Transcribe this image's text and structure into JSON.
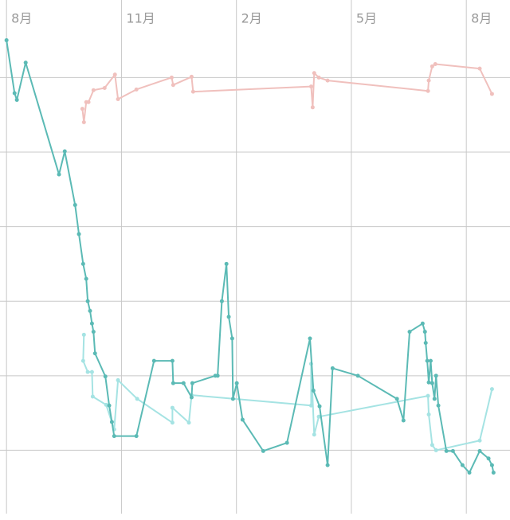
{
  "chart_data": {
    "type": "line",
    "xlim": [
      -0.17,
      13.14
    ],
    "xticks": [
      {
        "value": 0,
        "label": "8月"
      },
      {
        "value": 3,
        "label": "11月"
      },
      {
        "value": 6,
        "label": "2月"
      },
      {
        "value": 9,
        "label": "5月"
      },
      {
        "value": 12,
        "label": "8月"
      }
    ],
    "ylim": [
      -0.85,
      6.04
    ],
    "yticks": [
      0,
      1,
      2,
      3,
      4,
      5
    ],
    "grid": true,
    "series": [
      {
        "color": "#f0c0bd",
        "x": [
          1.98,
          2.02,
          2.08,
          2.14,
          2.27,
          2.56,
          2.83,
          2.91,
          3.39,
          4.31,
          4.35,
          4.83,
          4.87,
          7.95,
          7.99,
          8.03,
          8.15,
          8.38,
          11.0,
          11.02,
          11.11,
          11.19,
          12.35,
          12.67
        ],
        "values": [
          4.58,
          4.4,
          4.67,
          4.67,
          4.83,
          4.86,
          5.04,
          4.71,
          4.84,
          5.0,
          4.9,
          5.01,
          4.81,
          4.88,
          4.6,
          5.06,
          5.0,
          4.96,
          4.82,
          4.96,
          5.15,
          5.18,
          5.12,
          4.78
        ]
      },
      {
        "color": "#a5e3e3",
        "x": [
          2.02,
          2.0,
          2.12,
          2.23,
          2.25,
          2.6,
          2.81,
          2.91,
          3.41,
          4.33,
          4.33,
          4.76,
          4.83,
          7.95,
          7.95,
          8.03,
          8.15,
          11.0,
          11.02,
          11.11,
          11.21,
          12.35,
          12.67
        ],
        "values": [
          1.55,
          1.2,
          1.05,
          1.05,
          0.72,
          0.61,
          0.28,
          0.94,
          0.69,
          0.37,
          0.57,
          0.37,
          0.74,
          0.6,
          1.16,
          0.21,
          0.45,
          0.73,
          0.48,
          0.07,
          0.0,
          0.13,
          0.82
        ]
      },
      {
        "color": "#5bbab5",
        "x": [
          0.0,
          0.21,
          0.27,
          0.5,
          1.37,
          1.52,
          1.79,
          1.89,
          2.0,
          2.08,
          2.12,
          2.18,
          2.23,
          2.27,
          2.31,
          2.58,
          2.68,
          2.75,
          2.81,
          3.39,
          3.85,
          4.33,
          4.35,
          4.62,
          4.83,
          4.85,
          5.45,
          5.51,
          5.62,
          5.74,
          5.8,
          5.89,
          5.91,
          6.01,
          6.16,
          6.7,
          7.32,
          7.92,
          8.01,
          8.17,
          8.38,
          8.51,
          9.17,
          10.19,
          10.36,
          10.52,
          10.86,
          10.92,
          10.94,
          10.98,
          11.02,
          11.07,
          11.11,
          11.17,
          11.21,
          11.27,
          11.48,
          11.65,
          11.9,
          12.08,
          12.35,
          12.58,
          12.67,
          12.71
        ],
        "values": [
          5.5,
          4.79,
          4.7,
          5.2,
          3.7,
          4.01,
          3.29,
          2.9,
          2.5,
          2.3,
          2.0,
          1.87,
          1.7,
          1.59,
          1.3,
          0.99,
          0.6,
          0.38,
          0.19,
          0.19,
          1.2,
          1.2,
          0.9,
          0.9,
          0.71,
          0.9,
          1.0,
          1.0,
          2.0,
          2.5,
          1.79,
          1.5,
          0.69,
          0.9,
          0.41,
          -0.01,
          0.1,
          1.5,
          0.8,
          0.59,
          -0.2,
          1.1,
          1.0,
          0.69,
          0.4,
          1.59,
          1.7,
          1.59,
          1.44,
          1.2,
          0.91,
          1.2,
          0.9,
          0.69,
          1.0,
          0.6,
          -0.01,
          -0.01,
          -0.2,
          -0.3,
          -0.01,
          -0.11,
          -0.2,
          -0.3
        ]
      }
    ]
  }
}
